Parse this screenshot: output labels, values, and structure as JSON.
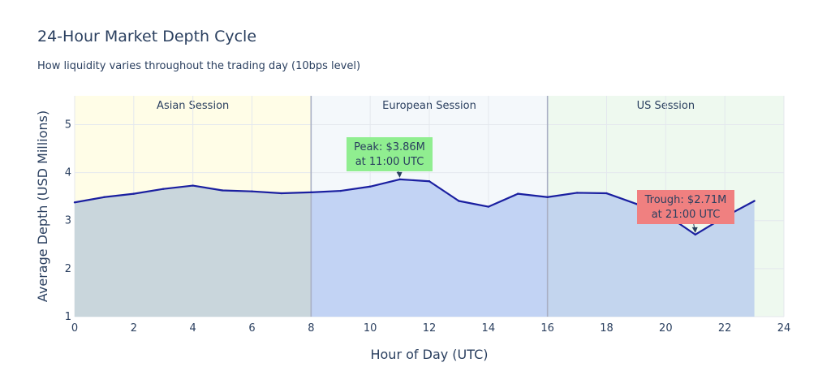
{
  "chart_data": {
    "type": "area",
    "title": "24-Hour Market Depth Cycle",
    "subtitle": "How liquidity varies throughout the trading day (10bps level)",
    "xlabel": "Hour of Day (UTC)",
    "ylabel": "Average Depth (USD Millions)",
    "xlim": [
      0,
      24
    ],
    "ylim": [
      1,
      5.6
    ],
    "xticks": [
      0,
      2,
      4,
      6,
      8,
      10,
      12,
      14,
      16,
      18,
      20,
      22,
      24
    ],
    "yticks": [
      1,
      2,
      3,
      4,
      5
    ],
    "grid": true,
    "x": [
      0,
      1,
      2,
      3,
      4,
      5,
      6,
      7,
      8,
      9,
      10,
      11,
      12,
      13,
      14,
      15,
      16,
      17,
      18,
      19,
      20,
      21,
      22,
      23
    ],
    "values": [
      3.38,
      3.49,
      3.56,
      3.66,
      3.73,
      3.63,
      3.61,
      3.57,
      3.59,
      3.62,
      3.71,
      3.86,
      3.82,
      3.41,
      3.29,
      3.56,
      3.49,
      3.58,
      3.57,
      3.35,
      3.13,
      2.71,
      3.08,
      3.41
    ],
    "sessions": [
      {
        "label": "Asian Session",
        "x0": 0,
        "x1": 8,
        "color": "#fffde7"
      },
      {
        "label": "European Session",
        "x0": 8,
        "x1": 16,
        "color": "#f4f8fb"
      },
      {
        "label": "US Session",
        "x0": 16,
        "x1": 24,
        "color": "#eef9ef"
      }
    ],
    "session_fills": [
      "#c9d6dc",
      "#c2d3f4",
      "#c3d5ee"
    ],
    "line_color": "#1a1fa0",
    "annotations": [
      {
        "lines": [
          "Peak: $3.86M",
          "at 11:00 UTC"
        ],
        "x": 11,
        "y": 3.86,
        "bg": "#90ee90"
      },
      {
        "lines": [
          "Trough: $2.71M",
          "at 21:00 UTC"
        ],
        "x": 21,
        "y": 2.71,
        "bg": "#f08080"
      }
    ]
  }
}
